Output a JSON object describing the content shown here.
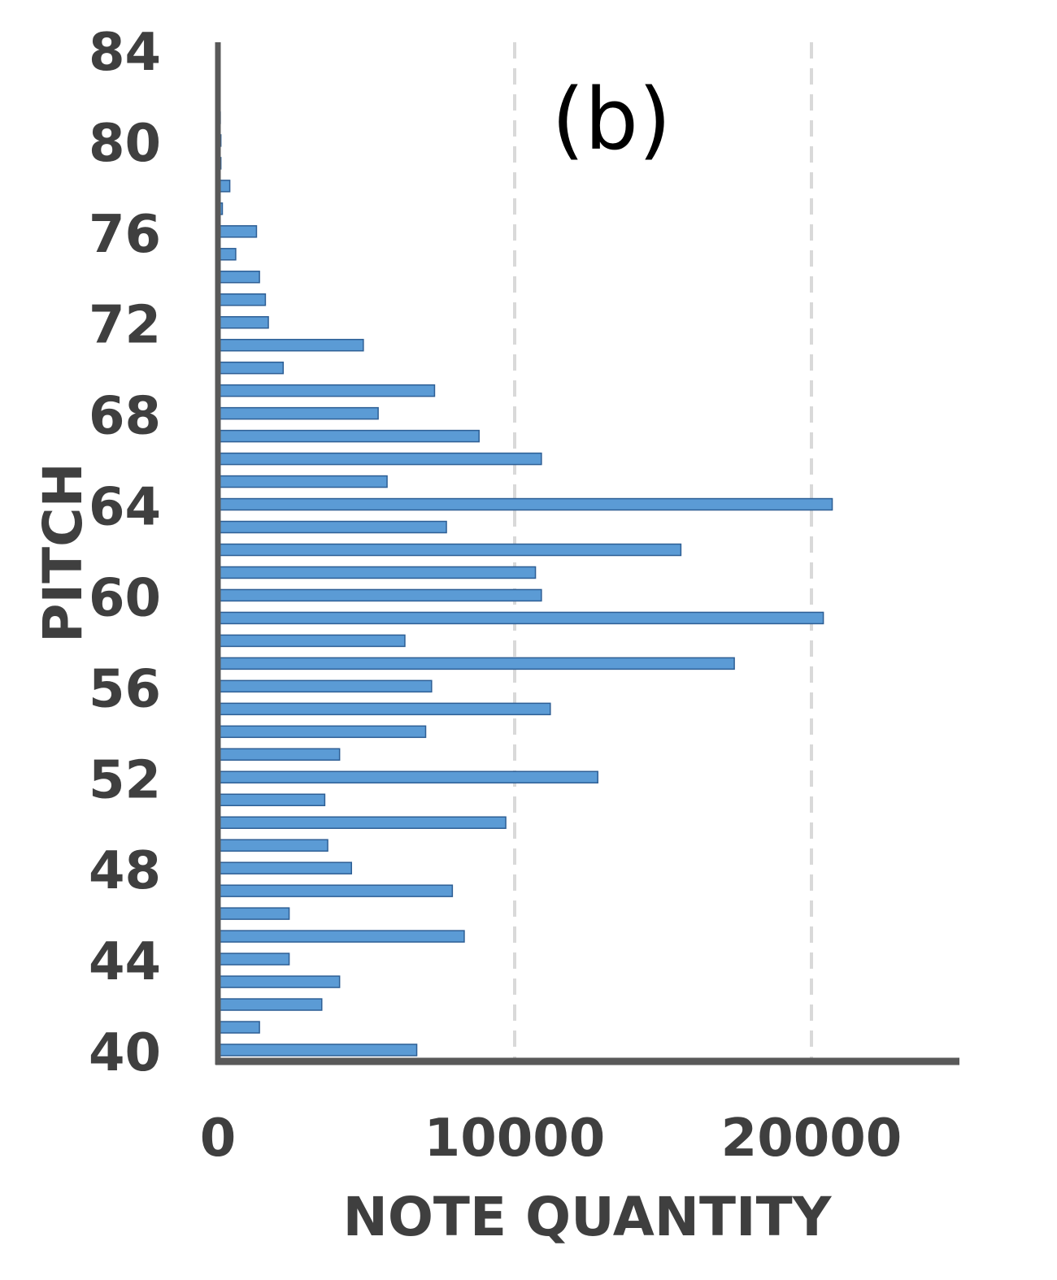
{
  "chart_data": {
    "type": "bar",
    "orientation": "horizontal",
    "panel_label": "(b)",
    "xlabel": "NOTE QUANTITY",
    "ylabel": "PITCH",
    "xlim": [
      0,
      25000
    ],
    "ylim": [
      40,
      84
    ],
    "x_ticks": [
      "0",
      "10000",
      "20000"
    ],
    "x_tick_values": [
      0,
      10000,
      20000
    ],
    "y_ticks": [
      "40",
      "44",
      "48",
      "52",
      "56",
      "60",
      "64",
      "68",
      "72",
      "76",
      "80",
      "84"
    ],
    "y_tick_values": [
      40,
      44,
      48,
      52,
      56,
      60,
      64,
      68,
      72,
      76,
      80,
      84
    ],
    "grid": "vertical dashed at 10000 and 20000",
    "bar_color": "#5b9bd5",
    "bar_edge_color": "#2e5f95",
    "axis_color": "#595959",
    "grid_color": "#d9d9d9",
    "pitches": [
      40,
      41,
      42,
      43,
      44,
      45,
      46,
      47,
      48,
      49,
      50,
      51,
      52,
      53,
      54,
      55,
      56,
      57,
      58,
      59,
      60,
      61,
      62,
      63,
      64,
      65,
      66,
      67,
      68,
      69,
      70,
      71,
      72,
      73,
      74,
      75,
      76,
      77,
      78,
      79,
      80,
      81,
      82,
      83,
      84
    ],
    "values": [
      6700,
      1400,
      3500,
      4100,
      2400,
      8300,
      2400,
      7900,
      4500,
      3700,
      9700,
      3600,
      12800,
      4100,
      7000,
      11200,
      7200,
      17400,
      6300,
      20400,
      10900,
      10700,
      15600,
      7700,
      20700,
      5700,
      10900,
      8800,
      5400,
      7300,
      2200,
      4900,
      1700,
      1600,
      1400,
      600,
      1300,
      150,
      400,
      100,
      100,
      80,
      60,
      40,
      30
    ]
  }
}
